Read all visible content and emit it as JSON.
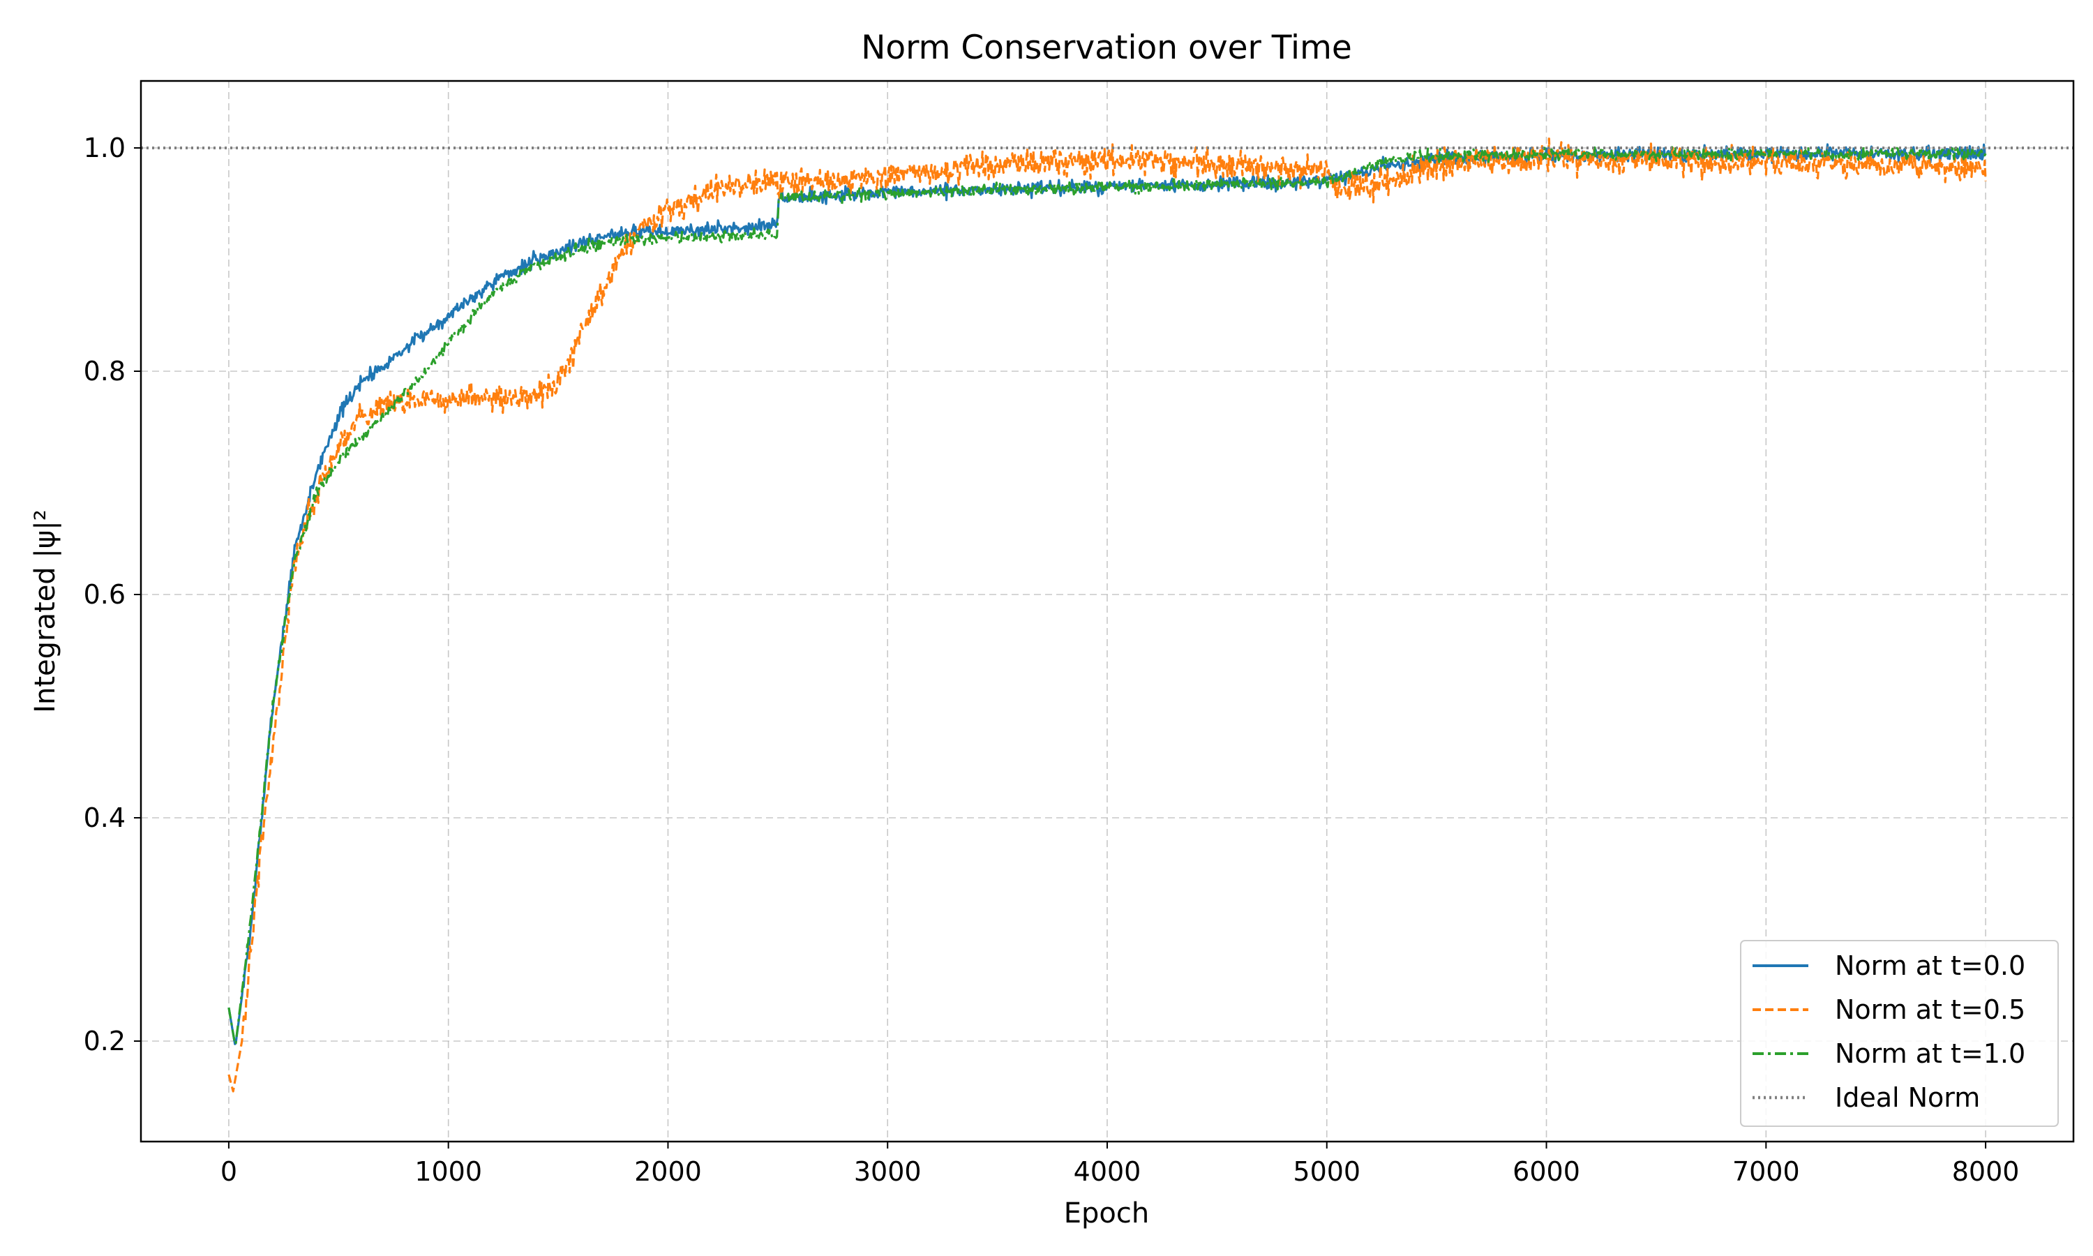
{
  "chart_data": {
    "type": "line",
    "title": "Norm Conservation over Time",
    "xlabel": "Epoch",
    "ylabel": "Integrated |ψ|²",
    "xlim": [
      -400,
      8400
    ],
    "ylim": [
      0.11,
      1.06
    ],
    "xticks": [
      0,
      1000,
      2000,
      3000,
      4000,
      5000,
      6000,
      7000,
      8000
    ],
    "yticks": [
      0.2,
      0.4,
      0.6,
      0.8,
      1.0
    ],
    "xtick_labels": [
      "0",
      "1000",
      "2000",
      "3000",
      "4000",
      "5000",
      "6000",
      "7000",
      "8000"
    ],
    "ytick_labels": [
      "0.2",
      "0.4",
      "0.6",
      "0.8",
      "1.0"
    ],
    "grid": true,
    "legend_position": "bottom-right",
    "series": [
      {
        "name": "Norm at t=0.0",
        "color": "#1f77b4",
        "style": "solid",
        "noise": 0.006,
        "x": [
          0,
          30,
          100,
          200,
          300,
          400,
          500,
          600,
          700,
          800,
          900,
          1000,
          1200,
          1400,
          1600,
          1800,
          2000,
          2200,
          2400,
          2499,
          2501,
          3000,
          4000,
          4500,
          5000,
          5300,
          5500,
          6000,
          7000,
          8000
        ],
        "y": [
          0.23,
          0.195,
          0.3,
          0.5,
          0.64,
          0.71,
          0.76,
          0.79,
          0.805,
          0.82,
          0.835,
          0.85,
          0.88,
          0.9,
          0.915,
          0.925,
          0.925,
          0.927,
          0.93,
          0.93,
          0.955,
          0.96,
          0.965,
          0.967,
          0.97,
          0.985,
          0.99,
          0.993,
          0.995,
          0.995
        ]
      },
      {
        "name": "Norm at t=0.5",
        "color": "#ff7f0e",
        "style": "dashed",
        "noise": 0.012,
        "x": [
          0,
          20,
          60,
          150,
          300,
          400,
          500,
          600,
          700,
          800,
          1000,
          1200,
          1400,
          1500,
          1600,
          1700,
          1800,
          1900,
          2000,
          2200,
          2400,
          2499,
          2501,
          3000,
          3500,
          4000,
          4500,
          5000,
          5050,
          5300,
          5500,
          6000,
          7000,
          8000
        ],
        "y": [
          0.17,
          0.155,
          0.2,
          0.38,
          0.63,
          0.69,
          0.73,
          0.76,
          0.77,
          0.773,
          0.775,
          0.775,
          0.78,
          0.79,
          0.83,
          0.87,
          0.91,
          0.93,
          0.945,
          0.96,
          0.97,
          0.97,
          0.965,
          0.975,
          0.985,
          0.99,
          0.985,
          0.98,
          0.962,
          0.97,
          0.985,
          0.99,
          0.988,
          0.98
        ]
      },
      {
        "name": "Norm at t=1.0",
        "color": "#2ca02c",
        "style": "dashdot",
        "noise": 0.005,
        "x": [
          0,
          30,
          100,
          200,
          300,
          400,
          500,
          600,
          700,
          800,
          900,
          1000,
          1200,
          1400,
          1600,
          1800,
          2000,
          2200,
          2400,
          2499,
          2501,
          3000,
          4000,
          4500,
          5000,
          5300,
          5500,
          6000,
          7000,
          8000
        ],
        "y": [
          0.23,
          0.195,
          0.31,
          0.5,
          0.63,
          0.69,
          0.72,
          0.74,
          0.76,
          0.78,
          0.8,
          0.825,
          0.87,
          0.895,
          0.91,
          0.918,
          0.92,
          0.92,
          0.922,
          0.922,
          0.955,
          0.96,
          0.965,
          0.967,
          0.97,
          0.99,
          0.993,
          0.994,
          0.995,
          0.995
        ]
      },
      {
        "name": "Ideal Norm",
        "color": "#808080",
        "style": "dotted",
        "noise": 0,
        "x": [
          -400,
          8400
        ],
        "y": [
          1.0,
          1.0
        ]
      }
    ]
  }
}
